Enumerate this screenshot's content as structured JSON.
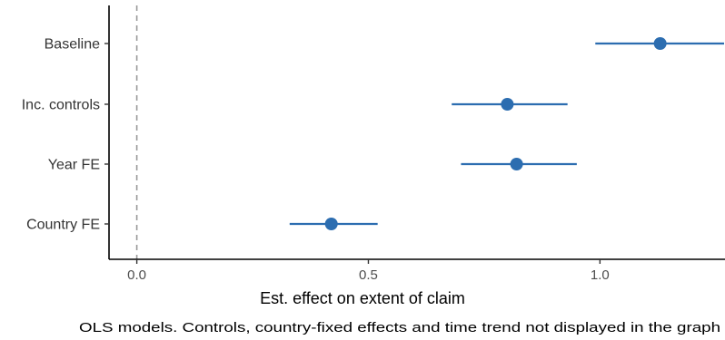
{
  "chart_data": {
    "type": "scatter",
    "title": "",
    "xlabel": "Est. effect on extent of claim",
    "ylabel": "",
    "caption": "OLS models. Controls, country-fixed effects and time trend not displayed in the graph",
    "categories": [
      "Baseline",
      "Inc. controls",
      "Year FE",
      "Country FE"
    ],
    "estimates": [
      1.13,
      0.8,
      0.82,
      0.42
    ],
    "ci_low": [
      0.99,
      0.68,
      0.7,
      0.33
    ],
    "ci_high": [
      1.27,
      0.93,
      0.95,
      0.52
    ],
    "xlim": [
      -0.06,
      1.27
    ],
    "xticks": [
      0.0,
      0.5,
      1.0
    ],
    "xtick_labels": [
      "0.0",
      "0.5",
      "1.0"
    ],
    "reference_line": 0.0,
    "point_color": "#2c6db0",
    "reference_line_color": "#999999",
    "grid": false,
    "legend": "none"
  }
}
